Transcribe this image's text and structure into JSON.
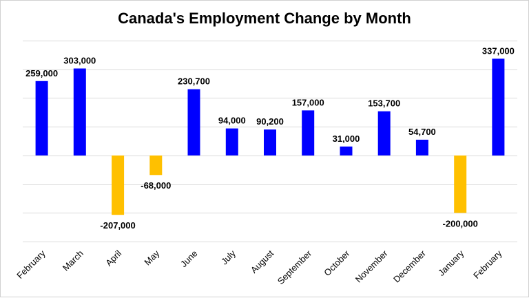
{
  "chart_data": {
    "type": "bar",
    "title": "Canada's Employment Change by Month",
    "xlabel": "",
    "ylabel": "",
    "categories": [
      "February",
      "March",
      "April",
      "May",
      "June",
      "July",
      "August",
      "September",
      "October",
      "November",
      "December",
      "January",
      "February"
    ],
    "values": [
      259000,
      303000,
      -207000,
      -68000,
      230700,
      94000,
      90200,
      157000,
      31000,
      153700,
      54700,
      -200000,
      337000
    ],
    "data_labels": [
      "259,000",
      "303,000",
      "-207,000",
      "-68,000",
      "230,700",
      "94,000",
      "90,200",
      "157,000",
      "31,000",
      "153,700",
      "54,700",
      "-200,000",
      "337,000"
    ],
    "ylim": [
      -300000,
      400000
    ],
    "gridlines": [
      -300000,
      -200000,
      -100000,
      0,
      100000,
      200000,
      300000,
      400000
    ],
    "grid": true,
    "legend": "none",
    "colors": {
      "positive": "#0000FF",
      "negative": "#FFC000",
      "grid": "#d9d9d9"
    }
  }
}
